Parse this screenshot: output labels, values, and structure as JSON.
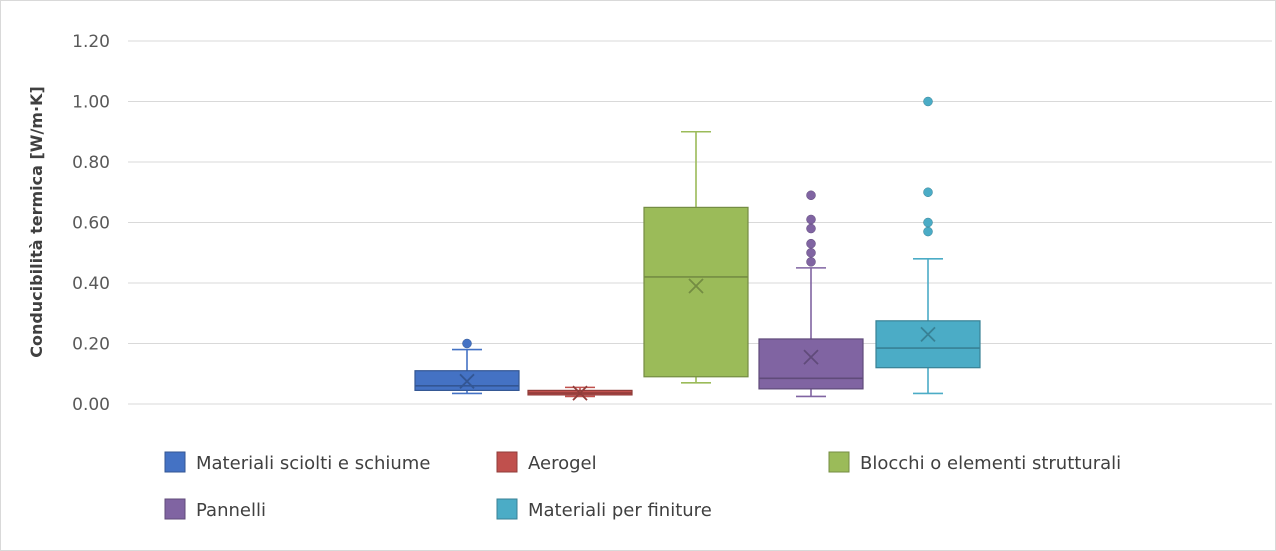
{
  "chart_data": {
    "type": "boxplot",
    "title": "",
    "xlabel": "",
    "ylabel": "Conducibilità termica [W/m·K]",
    "ylim": [
      0,
      1.2
    ],
    "yticks": [
      "0.00",
      "0.20",
      "0.40",
      "0.60",
      "0.80",
      "1.00",
      "1.20"
    ],
    "grid": true,
    "legend_position": "bottom",
    "series": [
      {
        "name": "Materiali sciolti e schiume",
        "color": "#4472c4",
        "min": 0.035,
        "q1": 0.045,
        "median": 0.06,
        "q3": 0.11,
        "max": 0.18,
        "mean": 0.075,
        "outliers": [
          0.2
        ]
      },
      {
        "name": "Aerogel",
        "color": "#c0504d",
        "min": 0.025,
        "q1": 0.03,
        "median": 0.036,
        "q3": 0.045,
        "max": 0.055,
        "mean": 0.036,
        "outliers": []
      },
      {
        "name": "Blocchi o elementi strutturali",
        "color": "#9bbb59",
        "min": 0.07,
        "q1": 0.09,
        "median": 0.42,
        "q3": 0.65,
        "max": 0.9,
        "mean": 0.39,
        "outliers": []
      },
      {
        "name": "Pannelli",
        "color": "#8064a2",
        "min": 0.025,
        "q1": 0.05,
        "median": 0.085,
        "q3": 0.215,
        "max": 0.45,
        "mean": 0.155,
        "outliers": [
          0.47,
          0.5,
          0.53,
          0.58,
          0.61,
          0.69
        ]
      },
      {
        "name": "Materiali per finiture",
        "color": "#4bacc6",
        "min": 0.035,
        "q1": 0.12,
        "median": 0.185,
        "q3": 0.275,
        "max": 0.48,
        "mean": 0.23,
        "outliers": [
          0.57,
          0.6,
          0.7,
          1.0
        ]
      }
    ]
  }
}
